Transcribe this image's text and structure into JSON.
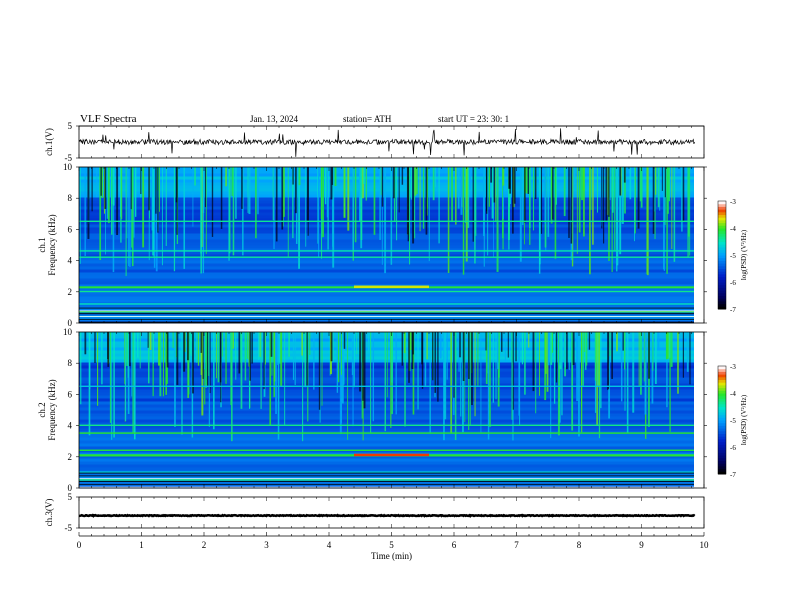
{
  "header": {
    "title": "VLF  Spectra",
    "date": "Jan.  13,  2024",
    "station": "station= ATH",
    "start": "start  UT  =    23: 30: 1"
  },
  "chart_data": [
    {
      "type": "line",
      "name": "ch1-waveform",
      "ylabel": "ch.1(V)",
      "ylim": [
        -5,
        5
      ],
      "yticks": [
        "5",
        "-5"
      ],
      "x": [
        0,
        10
      ],
      "level": 0,
      "description_values": "noisy trace around 0 V with occasional negative spikes"
    },
    {
      "type": "heatmap",
      "name": "ch1-spectrogram",
      "ylabel": "ch.1\nFrequency  (kHz)",
      "ylim": [
        0,
        10
      ],
      "yticks": [
        "0",
        "2",
        "4",
        "6",
        "8",
        "10"
      ],
      "colorbar": {
        "label": "log(PSD) (V²/Hz)",
        "range": [
          -7,
          -3
        ],
        "ticks": [
          "-3",
          "-4",
          "-5",
          "-6",
          "-7"
        ]
      },
      "bands_khz": [
        0.4,
        0.7,
        1.2,
        2.0,
        4.2,
        4.6,
        6.5
      ],
      "enhancement": {
        "t_start_min": 4.4,
        "t_end_min": 5.6,
        "freq_khz": 2.2
      }
    },
    {
      "type": "heatmap",
      "name": "ch2-spectrogram",
      "ylabel": "ch.2\nFrequency  (kHz)",
      "ylim": [
        0,
        10
      ],
      "yticks": [
        "0",
        "2",
        "4",
        "6",
        "8",
        "10"
      ],
      "colorbar": {
        "label": "log(PSD) (V²/Hz)",
        "range": [
          -7,
          -3
        ],
        "ticks": [
          "-3",
          "-4",
          "-5",
          "-6",
          "-7"
        ]
      },
      "bands_khz": [
        0.5,
        1.0,
        2.1,
        2.4,
        3.5,
        4.0,
        6.5
      ],
      "enhancement": {
        "t_start_min": 4.4,
        "t_end_min": 5.6,
        "freq_khz": 2.0
      }
    },
    {
      "type": "line",
      "name": "ch3-waveform",
      "ylabel": "ch.3(V)",
      "ylim": [
        -5,
        5
      ],
      "yticks": [
        "5",
        "-5"
      ],
      "level": -1
    }
  ],
  "xaxis": {
    "label": "Time  (min)",
    "ticks": [
      "0",
      "1",
      "2",
      "3",
      "4",
      "5",
      "6",
      "7",
      "8",
      "9",
      "10"
    ],
    "range": [
      0,
      10
    ]
  },
  "colors": {
    "low": "#000000",
    "mid_low": "#0000c8",
    "mid": "#00c8ff",
    "mid_high": "#00e000",
    "high": "#e00000"
  }
}
